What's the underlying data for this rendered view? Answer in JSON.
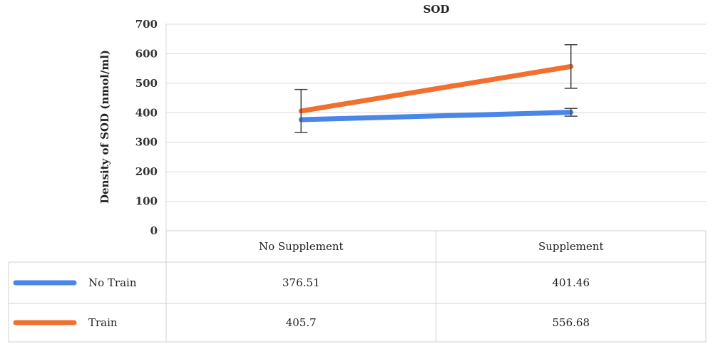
{
  "chart_data": {
    "type": "line",
    "title": "SOD",
    "ylabel": "Density of SOD (nmol/ml)",
    "xlabel": "",
    "ylim": [
      0,
      700
    ],
    "yticks": [
      "0",
      "100",
      "200",
      "300",
      "400",
      "500",
      "600",
      "700"
    ],
    "categories": [
      "No Supplement",
      "Supplement"
    ],
    "grid": true,
    "legend": "data-table",
    "series": [
      {
        "name": "No Train",
        "color": "#4a86e8",
        "values": [
          376.51,
          401.46
        ],
        "value_labels": [
          "376.51",
          "401.46"
        ],
        "error": [
          null,
          13
        ]
      },
      {
        "name": "Train",
        "color": "#f07030",
        "values": [
          405.7,
          556.68
        ],
        "value_labels": [
          "405.7",
          "556.68"
        ],
        "error": [
          73,
          74
        ]
      }
    ]
  }
}
